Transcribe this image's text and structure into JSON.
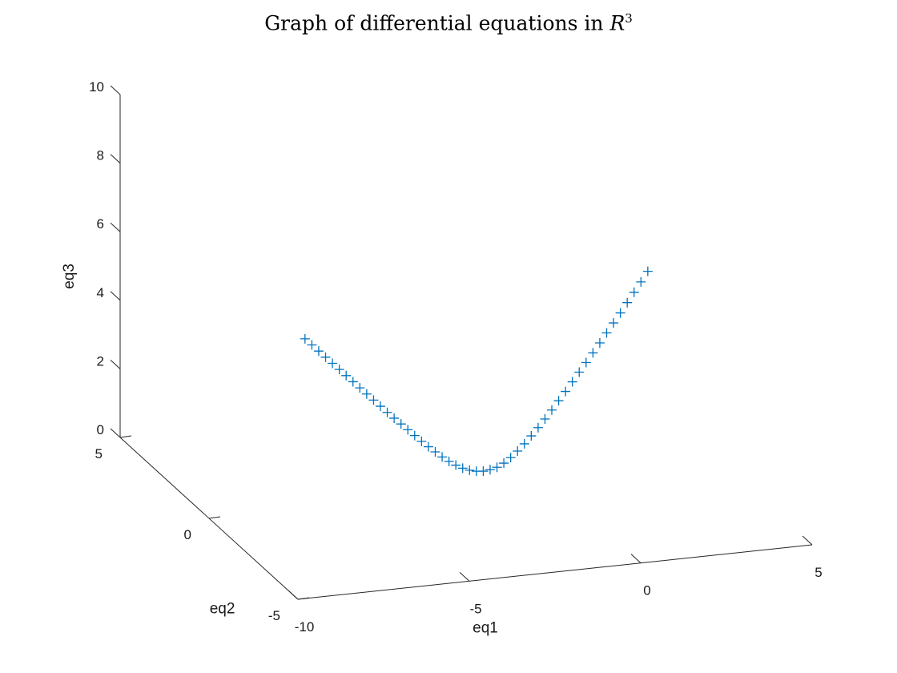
{
  "chart_data": {
    "type": "scatter",
    "title": {
      "prefix": "Graph of differential equations in ",
      "variable": "R",
      "exponent": "3"
    },
    "xlabel": "eq1",
    "ylabel": "eq2",
    "zlabel": "eq3",
    "xlim": [
      -10,
      5
    ],
    "ylim": [
      -5,
      5
    ],
    "zlim": [
      0,
      10
    ],
    "xticks": [
      -10,
      -5,
      0,
      5
    ],
    "yticks": [
      -5,
      0,
      5
    ],
    "zticks": [
      0,
      2,
      4,
      6,
      8,
      10
    ],
    "xtick_labels": [
      "-10",
      "-5",
      "0",
      "5"
    ],
    "ytick_labels": [
      "-5",
      "0",
      "5"
    ],
    "ztick_labels": [
      "0",
      "2",
      "4",
      "6",
      "8",
      "10"
    ],
    "marker": "+",
    "grid": false,
    "series": [
      {
        "points_xyz": [
          [
            -7.2,
            0,
            4.94
          ],
          [
            -7.0,
            0,
            4.74
          ],
          [
            -6.8,
            0,
            4.54
          ],
          [
            -6.6,
            0,
            4.34
          ],
          [
            -6.4,
            0,
            4.14
          ],
          [
            -6.2,
            0,
            3.94
          ],
          [
            -6.0,
            0,
            3.74
          ],
          [
            -5.8,
            0,
            3.54
          ],
          [
            -5.6,
            0,
            3.34
          ],
          [
            -5.4,
            0,
            3.14
          ],
          [
            -5.2,
            0,
            2.94
          ],
          [
            -5.0,
            0,
            2.74
          ],
          [
            -4.8,
            0,
            2.54
          ],
          [
            -4.6,
            0,
            2.35
          ],
          [
            -4.4,
            0,
            2.16
          ],
          [
            -4.2,
            0,
            1.97
          ],
          [
            -4.0,
            0,
            1.78
          ],
          [
            -3.8,
            0,
            1.59
          ],
          [
            -3.6,
            0,
            1.41
          ],
          [
            -3.4,
            0,
            1.24
          ],
          [
            -3.2,
            0,
            1.07
          ],
          [
            -3.0,
            0,
            0.92
          ],
          [
            -2.8,
            0,
            0.79
          ],
          [
            -2.6,
            0,
            0.68
          ],
          [
            -2.4,
            0,
            0.6
          ],
          [
            -2.2,
            0,
            0.55
          ],
          [
            -2.0,
            0,
            0.53
          ],
          [
            -1.8,
            0,
            0.55
          ],
          [
            -1.6,
            0,
            0.6
          ],
          [
            -1.4,
            0,
            0.7
          ],
          [
            -1.2,
            0,
            0.84
          ],
          [
            -1.0,
            0,
            1.01
          ],
          [
            -0.8,
            0,
            1.2
          ],
          [
            -0.6,
            0,
            1.41
          ],
          [
            -0.4,
            0,
            1.63
          ],
          [
            -0.2,
            0,
            1.86
          ],
          [
            0.0,
            0,
            2.1
          ],
          [
            0.2,
            0,
            2.35
          ],
          [
            0.4,
            0,
            2.6
          ],
          [
            0.6,
            0,
            2.86
          ],
          [
            0.8,
            0,
            3.12
          ],
          [
            1.0,
            0,
            3.38
          ],
          [
            1.2,
            0,
            3.64
          ],
          [
            1.4,
            0,
            3.91
          ],
          [
            1.6,
            0,
            4.18
          ],
          [
            1.8,
            0,
            4.45
          ],
          [
            2.0,
            0,
            4.72
          ],
          [
            2.2,
            0,
            5.0
          ],
          [
            2.4,
            0,
            5.28
          ],
          [
            2.6,
            0,
            5.56
          ],
          [
            2.8,
            0,
            5.85
          ]
        ]
      }
    ]
  }
}
